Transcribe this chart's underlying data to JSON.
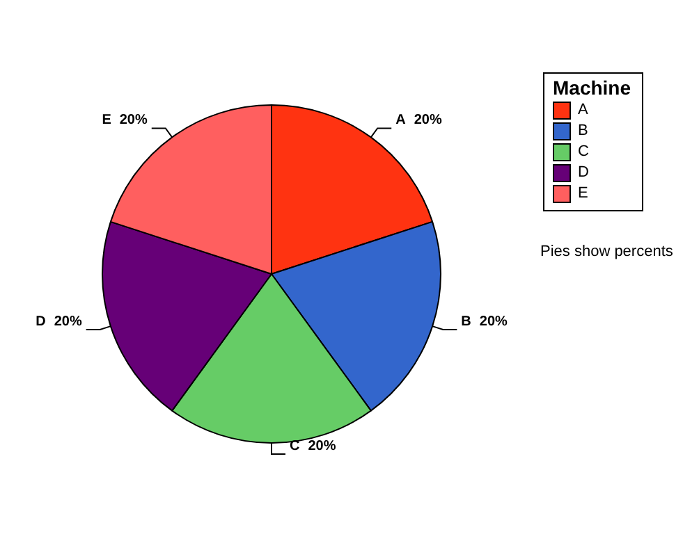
{
  "chart_data": {
    "type": "pie",
    "legend_title": "Machine",
    "legend": "top right",
    "categories": [
      "A",
      "B",
      "C",
      "D",
      "E"
    ],
    "values": [
      20,
      20,
      20,
      20,
      20
    ],
    "value_labels": [
      "20%",
      "20%",
      "20%",
      "20%",
      "20%"
    ],
    "colors": [
      "#ff3311",
      "#3366cc",
      "#66cc66",
      "#660077",
      "#ff5f5f"
    ],
    "annotations": [
      "Pies show percents"
    ]
  }
}
